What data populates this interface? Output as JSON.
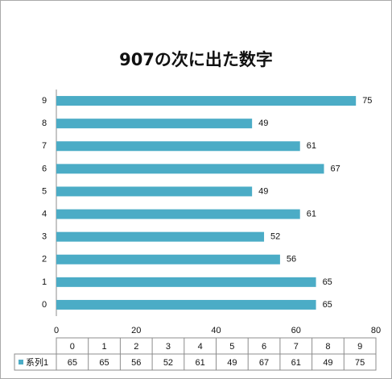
{
  "chart_data": {
    "type": "bar",
    "orientation": "horizontal",
    "title": "907の次に出た数字",
    "categories": [
      "0",
      "1",
      "2",
      "3",
      "4",
      "5",
      "6",
      "7",
      "8",
      "9"
    ],
    "series": [
      {
        "name": "系列1",
        "values": [
          65,
          65,
          56,
          52,
          61,
          49,
          67,
          61,
          49,
          75
        ],
        "color": "#4bacc6"
      }
    ],
    "xlim": [
      0,
      80
    ],
    "xticks": [
      0,
      20,
      40,
      60,
      80
    ],
    "grid": false,
    "data_labels": true,
    "data_table": true
  }
}
